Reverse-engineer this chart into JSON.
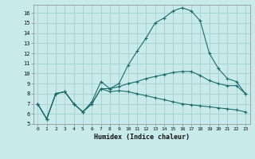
{
  "xlabel": "Humidex (Indice chaleur)",
  "bg_color": "#c8eaea",
  "grid_color": "#aad4d4",
  "line_color": "#1e6b6b",
  "xlim": [
    -0.5,
    23.5
  ],
  "ylim": [
    5,
    16.8
  ],
  "xticks": [
    0,
    1,
    2,
    3,
    4,
    5,
    6,
    7,
    8,
    9,
    10,
    11,
    12,
    13,
    14,
    15,
    16,
    17,
    18,
    19,
    20,
    21,
    22,
    23
  ],
  "yticks": [
    5,
    6,
    7,
    8,
    9,
    10,
    11,
    12,
    13,
    14,
    15,
    16
  ],
  "series1_x": [
    0,
    1,
    2,
    3,
    4,
    5,
    6,
    7,
    8,
    9,
    10,
    11,
    12,
    13,
    14,
    15,
    16,
    17,
    18,
    19,
    20,
    21,
    22,
    23
  ],
  "series1_y": [
    7.0,
    5.5,
    8.0,
    8.2,
    7.0,
    6.2,
    7.2,
    9.2,
    8.5,
    9.0,
    10.8,
    12.2,
    13.5,
    15.0,
    15.5,
    16.2,
    16.5,
    16.2,
    15.2,
    12.0,
    10.5,
    9.5,
    9.2,
    8.0
  ],
  "series2_x": [
    0,
    1,
    2,
    3,
    4,
    5,
    6,
    7,
    8,
    9,
    10,
    11,
    12,
    13,
    14,
    15,
    16,
    17,
    18,
    19,
    20,
    21,
    22,
    23
  ],
  "series2_y": [
    7.0,
    5.5,
    8.0,
    8.2,
    7.0,
    6.2,
    7.0,
    8.5,
    8.5,
    8.7,
    9.0,
    9.2,
    9.5,
    9.7,
    9.9,
    10.1,
    10.2,
    10.2,
    9.8,
    9.3,
    9.0,
    8.8,
    8.8,
    8.0
  ],
  "series3_x": [
    0,
    1,
    2,
    3,
    4,
    5,
    6,
    7,
    8,
    9,
    10,
    11,
    12,
    13,
    14,
    15,
    16,
    17,
    18,
    19,
    20,
    21,
    22,
    23
  ],
  "series3_y": [
    7.0,
    5.5,
    8.0,
    8.2,
    7.0,
    6.2,
    7.0,
    8.5,
    8.2,
    8.3,
    8.2,
    8.0,
    7.8,
    7.6,
    7.4,
    7.2,
    7.0,
    6.9,
    6.8,
    6.7,
    6.6,
    6.5,
    6.4,
    6.2
  ]
}
